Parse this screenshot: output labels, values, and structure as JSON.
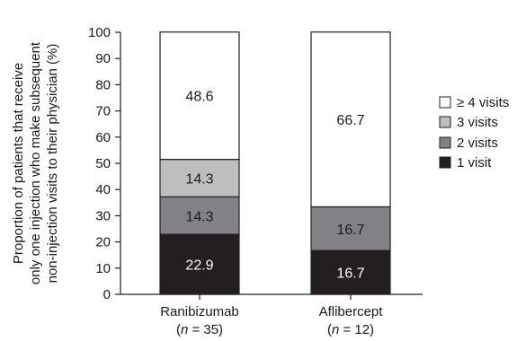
{
  "chart_data": {
    "type": "bar",
    "stacked": true,
    "title": "",
    "xlabel": "",
    "ylabel": {
      "lines": [
        "Proportion of patients that receive",
        "only one injection who make subsequent",
        "non-injection visits to their physician (%)"
      ]
    },
    "ylim": [
      0,
      100
    ],
    "yticks": [
      0,
      10,
      20,
      30,
      40,
      50,
      60,
      70,
      80,
      90,
      100
    ],
    "grid": false,
    "legend_position": "right",
    "categories": [
      {
        "name": "Ranibizumab",
        "n_prefix": "(",
        "n_symbol": "n",
        "n_value": " = 35)"
      },
      {
        "name": "Aflibercept",
        "n_prefix": "(",
        "n_symbol": "n",
        "n_value": " = 12)"
      }
    ],
    "series": [
      {
        "name": "1 visit",
        "color": "#231f20",
        "label_color": "#ffffff",
        "values": [
          22.9,
          16.7
        ],
        "labels": [
          "22.9",
          "16.7"
        ]
      },
      {
        "name": "2 visits",
        "color": "#808285",
        "label_color": "#1a1a1a",
        "values": [
          14.3,
          16.7
        ],
        "labels": [
          "14.3",
          "16.7"
        ]
      },
      {
        "name": "3 visits",
        "color": "#bcbec0",
        "label_color": "#1a1a1a",
        "values": [
          14.3,
          0
        ],
        "labels": [
          "14.3",
          ""
        ]
      },
      {
        "name": "≥ 4 visits",
        "color": "#ffffff",
        "label_color": "#1a1a1a",
        "values": [
          48.6,
          66.7
        ],
        "labels": [
          "48.6",
          "66.7"
        ]
      }
    ],
    "legend_order": [
      3,
      2,
      1,
      0
    ]
  }
}
